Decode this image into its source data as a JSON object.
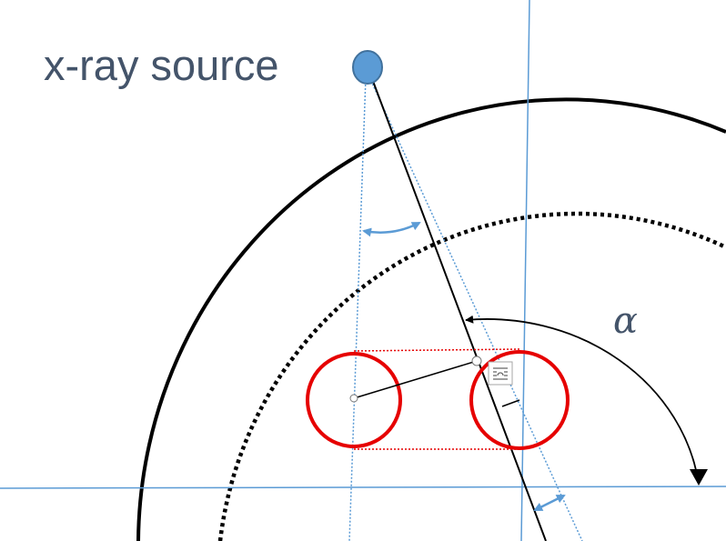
{
  "labels": {
    "source": "x-ray source",
    "angle": "α"
  },
  "icons": {
    "layout_options": "layout-options-icon"
  },
  "colors": {
    "guide_line": "#5b9bd5",
    "source_dot": "#5b9bd5",
    "source_outline": "#41719c",
    "object_circle": "#e60000",
    "outline": "#000000",
    "label_text": "#44546a"
  }
}
